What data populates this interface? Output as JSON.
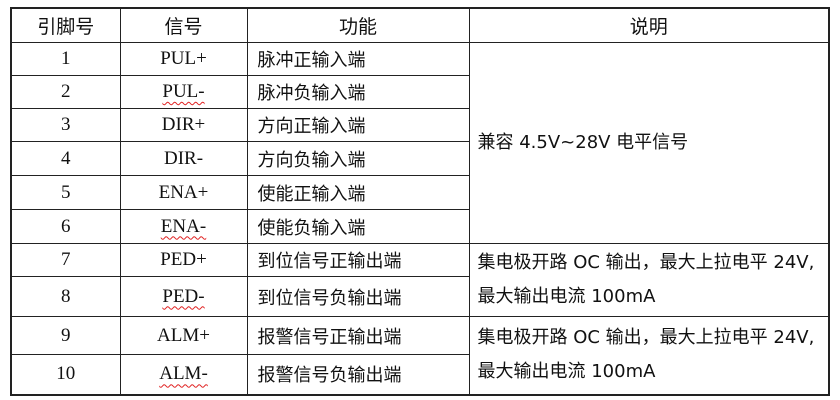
{
  "headers": {
    "pin": "引脚号",
    "signal": "信号",
    "function": "功能",
    "description": "说明"
  },
  "rows": [
    {
      "pin": "1",
      "signal": "PUL+",
      "function": "脉冲正输入端",
      "spell": false
    },
    {
      "pin": "2",
      "signal": "PUL-",
      "function": "脉冲负输入端",
      "spell": true
    },
    {
      "pin": "3",
      "signal": "DIR+",
      "function": "方向正输入端",
      "spell": false
    },
    {
      "pin": "4",
      "signal": "DIR-",
      "function": "方向负输入端",
      "spell": false
    },
    {
      "pin": "5",
      "signal": "ENA+",
      "function": "使能正输入端",
      "spell": false
    },
    {
      "pin": "6",
      "signal": "ENA-",
      "function": "使能负输入端",
      "spell": true
    },
    {
      "pin": "7",
      "signal": "PED+",
      "function": "到位信号正输出端",
      "spell": false
    },
    {
      "pin": "8",
      "signal": "PED-",
      "function": "到位信号负输出端",
      "spell": true
    },
    {
      "pin": "9",
      "signal": "ALM+",
      "function": "报警信号正输出端",
      "spell": false
    },
    {
      "pin": "10",
      "signal": "ALM-",
      "function": "报警信号负输出端",
      "spell": true
    }
  ],
  "descriptions": {
    "inputs": "兼容 4.5V~28V 电平信号",
    "ped": "集电极开路 OC 输出，最大上拉电平 24V,最大输出电流 100mA",
    "alm": "集电极开路 OC 输出，最大上拉电平 24V,最大输出电流 100mA"
  }
}
